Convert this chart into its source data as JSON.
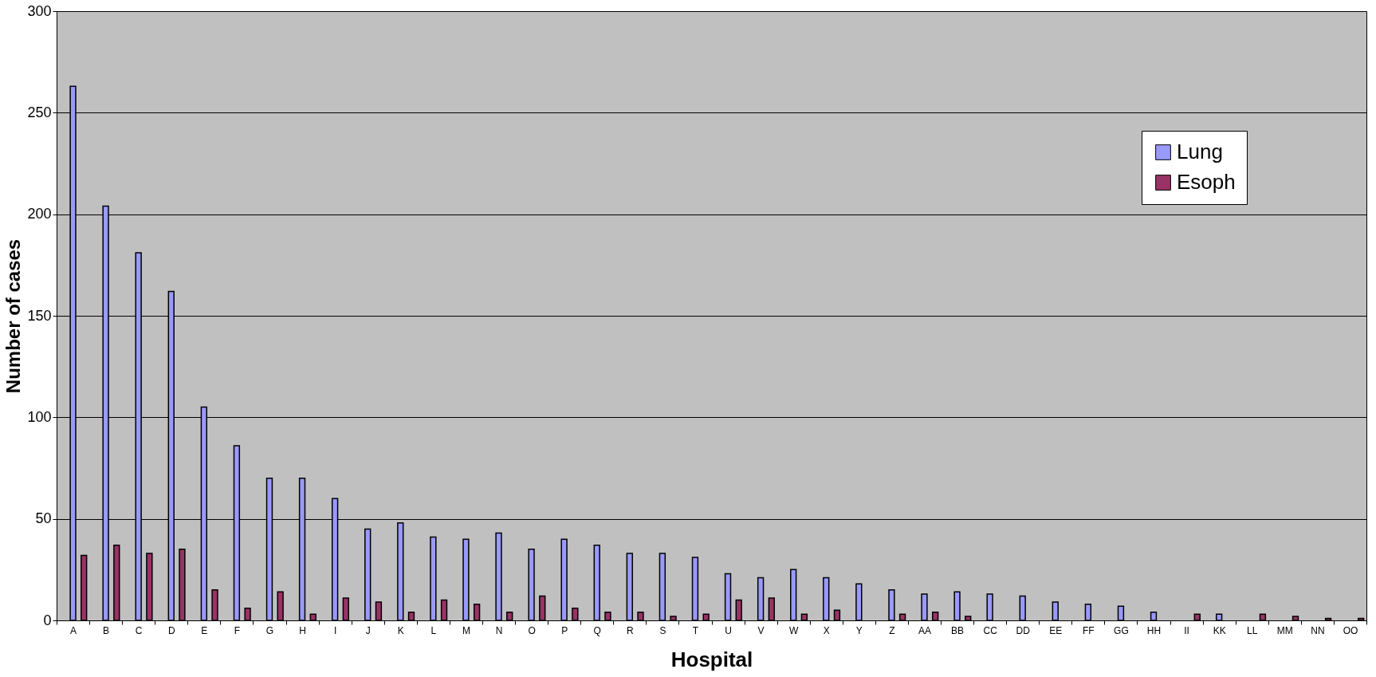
{
  "chart_data": {
    "type": "bar",
    "xlabel": "Hospital",
    "ylabel": "Number of cases",
    "categories": [
      "A",
      "B",
      "C",
      "D",
      "E",
      "F",
      "G",
      "H",
      "I",
      "J",
      "K",
      "L",
      "M",
      "N",
      "O",
      "P",
      "Q",
      "R",
      "S",
      "T",
      "U",
      "V",
      "W",
      "X",
      "Y",
      "Z",
      "AA",
      "BB",
      "CC",
      "DD",
      "EE",
      "FF",
      "GG",
      "HH",
      "II",
      "KK",
      "LL",
      "MM",
      "NN",
      "OO"
    ],
    "series": [
      {
        "name": "Lung",
        "color": "#9999ff",
        "values": [
          263,
          204,
          181,
          162,
          105,
          86,
          70,
          70,
          60,
          45,
          48,
          41,
          40,
          43,
          35,
          40,
          37,
          33,
          33,
          31,
          23,
          21,
          25,
          21,
          18,
          15,
          13,
          14,
          13,
          12,
          9,
          8,
          7,
          4,
          null,
          3,
          null,
          null,
          null,
          null
        ]
      },
      {
        "name": "Esoph",
        "color": "#993366",
        "values": [
          32,
          37,
          33,
          35,
          15,
          6,
          14,
          3,
          11,
          9,
          4,
          10,
          8,
          4,
          12,
          6,
          4,
          4,
          2,
          3,
          10,
          11,
          3,
          5,
          null,
          3,
          4,
          2,
          null,
          null,
          null,
          null,
          null,
          null,
          3,
          null,
          3,
          2,
          1,
          1
        ]
      }
    ],
    "ylim": [
      0,
      300
    ],
    "yticks": [
      0,
      50,
      100,
      150,
      200,
      250,
      300
    ],
    "grid": "y",
    "legend": "top right"
  }
}
